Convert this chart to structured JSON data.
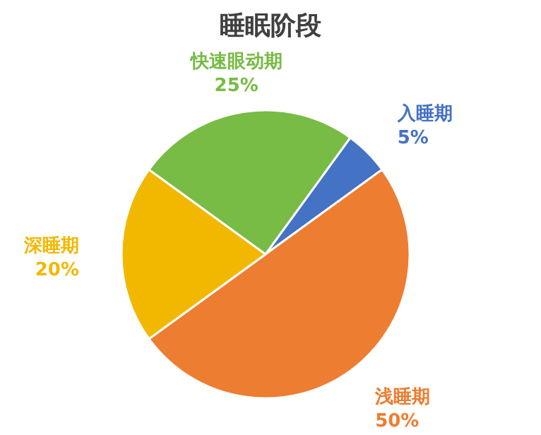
{
  "chart_data": {
    "type": "pie",
    "title": "睡眠阶段",
    "categories": [
      "入睡期",
      "浅睡期",
      "深睡期",
      "快速眼动期"
    ],
    "values": [
      5,
      50,
      20,
      25
    ],
    "colors": [
      "#4472c4",
      "#ed7d31",
      "#f2b800",
      "#78bb45"
    ],
    "value_labels": [
      "5%",
      "50%",
      "20%",
      "25%"
    ],
    "legend": false
  }
}
